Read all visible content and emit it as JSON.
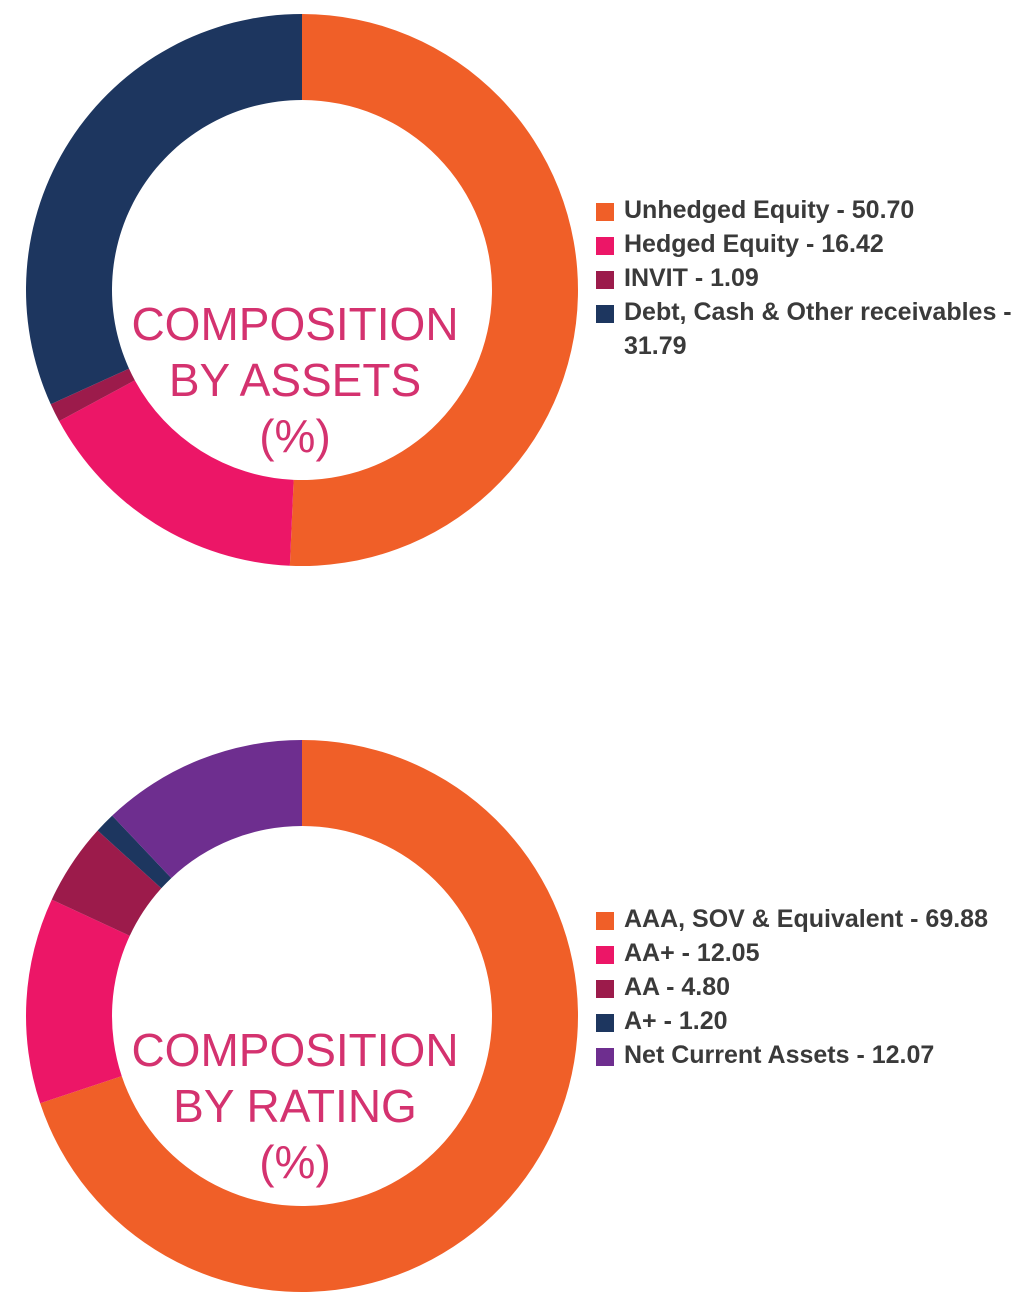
{
  "colors": {
    "center_label": "#d4326f",
    "legend_text": "#3a3a3a"
  },
  "chart_data": [
    {
      "type": "pie",
      "variant": "donut",
      "center_label": [
        "COMPOSITION",
        "BY ASSETS",
        "(%)"
      ],
      "slices": [
        {
          "label": "Unhedged Equity - 50.70",
          "value": 50.7,
          "color": "#f05f28"
        },
        {
          "label": "Hedged Equity - 16.42",
          "value": 16.42,
          "color": "#ec1667"
        },
        {
          "label": "INVIT - 1.09",
          "value": 1.09,
          "color": "#9c1b4b"
        },
        {
          "label": "Debt, Cash & Other receivables - 31.79",
          "value": 31.79,
          "color": "#1d365f"
        }
      ],
      "legend_position": "right"
    },
    {
      "type": "pie",
      "variant": "donut",
      "center_label": [
        "COMPOSITION",
        "BY RATING",
        "(%)"
      ],
      "slices": [
        {
          "label": "AAA, SOV & Equivalent - 69.88",
          "value": 69.88,
          "color": "#f05f28"
        },
        {
          "label": "AA+ - 12.05",
          "value": 12.05,
          "color": "#ec1667"
        },
        {
          "label": "AA - 4.80",
          "value": 4.8,
          "color": "#9c1b4b"
        },
        {
          "label": "A+ - 1.20",
          "value": 1.2,
          "color": "#1d365f"
        },
        {
          "label": "Net Current Assets - 12.07",
          "value": 12.07,
          "color": "#6e2e8f"
        }
      ],
      "legend_position": "right"
    }
  ]
}
